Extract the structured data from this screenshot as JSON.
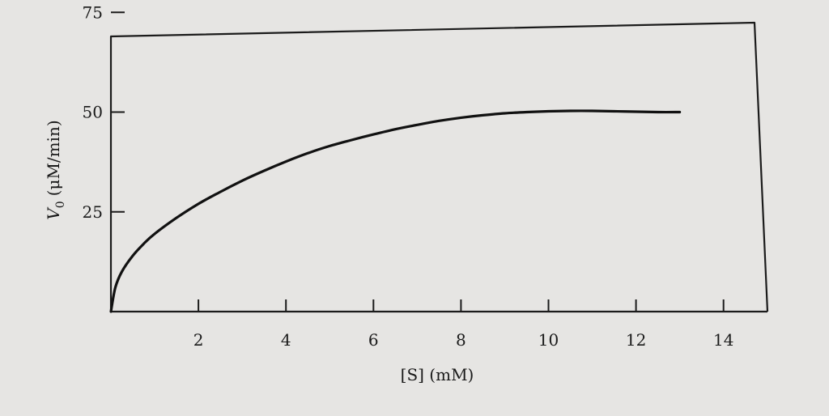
{
  "chart_data": {
    "type": "line",
    "title": "",
    "xlabel": "[S] (mM)",
    "ylabel": "V0 (μM/min)",
    "ylabel_main": "V",
    "ylabel_sub": "0",
    "ylabel_units": "(μM/min)",
    "xlim": [
      0,
      15
    ],
    "ylim": [
      0,
      80
    ],
    "x_ticks": [
      2,
      4,
      6,
      8,
      10,
      12,
      14
    ],
    "y_ticks": [
      25,
      50,
      75
    ],
    "x_tick_labels": [
      "2",
      "4",
      "6",
      "8",
      "10",
      "12",
      "14"
    ],
    "y_tick_labels": [
      "25",
      "50",
      "75"
    ],
    "grid": false,
    "series": [
      {
        "x": [
          0,
          0.1,
          0.25,
          0.5,
          0.75,
          1,
          1.5,
          2,
          2.5,
          3,
          3.5,
          4,
          4.5,
          5,
          5.5,
          6,
          6.5,
          7,
          7.5,
          8,
          8.5,
          9,
          9.5,
          10,
          10.5,
          11,
          11.5,
          12,
          12.5,
          13
        ],
        "y": [
          0,
          6,
          10,
          14,
          17,
          19.5,
          23.5,
          27,
          30,
          32.8,
          35.3,
          37.6,
          39.7,
          41.5,
          43,
          44.4,
          45.7,
          46.8,
          47.8,
          48.6,
          49.2,
          49.7,
          50,
          50.2,
          50.3,
          50.3,
          50.2,
          50.1,
          50.0,
          50.0
        ]
      }
    ]
  }
}
